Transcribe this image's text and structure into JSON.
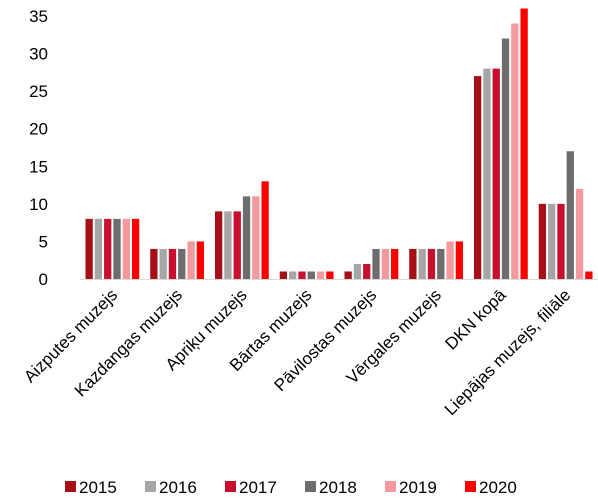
{
  "chart_data": {
    "type": "bar",
    "categories": [
      "Aizputes muzejs",
      "Kazdangas muzejs",
      "Apriķu muzejs",
      "Bārtas  muzejs",
      "Pāvilostas muzejs",
      "Vērgales muzejs",
      "DKN kopā",
      "Liepājas muzejs, filiāle"
    ],
    "series": [
      {
        "name": "2015",
        "color": "#a50f15",
        "values": [
          8,
          4,
          9,
          1,
          1,
          4,
          27,
          10
        ]
      },
      {
        "name": "2016",
        "color": "#a6a6a6",
        "values": [
          8,
          4,
          9,
          1,
          2,
          4,
          28,
          10
        ]
      },
      {
        "name": "2017",
        "color": "#c8102e",
        "values": [
          8,
          4,
          9,
          1,
          2,
          4,
          28,
          10
        ]
      },
      {
        "name": "2018",
        "color": "#6d6d6d",
        "values": [
          8,
          4,
          11,
          1,
          4,
          4,
          32,
          17
        ]
      },
      {
        "name": "2019",
        "color": "#f4999e",
        "values": [
          8,
          5,
          11,
          1,
          4,
          5,
          34,
          12
        ]
      },
      {
        "name": "2020",
        "color": "#ff0000",
        "values": [
          8,
          5,
          13,
          1,
          4,
          5,
          36,
          1
        ]
      }
    ],
    "ylim": [
      0,
      35
    ],
    "yticks": [
      0,
      5,
      10,
      15,
      20,
      25,
      30,
      35
    ],
    "xlabel": "",
    "ylabel": "",
    "title": "",
    "grid": false,
    "legend_position": "bottom"
  }
}
